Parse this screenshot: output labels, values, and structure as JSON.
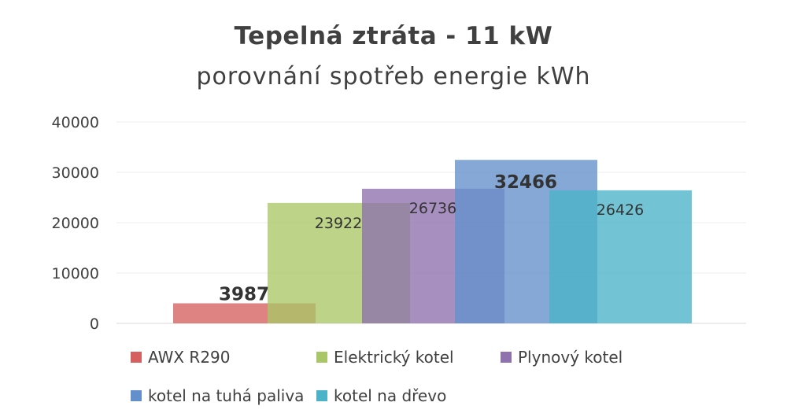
{
  "chart_data": {
    "type": "bar",
    "title": "Tepelná ztráta - 11 kW",
    "subtitle": "porovnání spotřeb energie kWh",
    "categories": [
      "AWX R290",
      "Elektrický kotel",
      "Plynový kotel",
      "kotel na tuhá paliva",
      "kotel na dřevo"
    ],
    "series": [
      {
        "name": "AWX R290",
        "value": 3987,
        "label": "3987",
        "color": "#d65f5f",
        "bold": true
      },
      {
        "name": "Elektrický kotel",
        "value": 23922,
        "label": "23922",
        "color": "#a9c766",
        "bold": false
      },
      {
        "name": "Plynový kotel",
        "value": 26736,
        "label": "26736",
        "color": "#8e71ad",
        "bold": false
      },
      {
        "name": "kotel na tuhá paliva",
        "value": 32466,
        "label": "32466",
        "color": "#6390cc",
        "bold": true
      },
      {
        "name": "kotel na dřevo",
        "value": 26426,
        "label": "26426",
        "color": "#4ab3c8",
        "bold": false
      }
    ],
    "ylim": [
      0,
      40000
    ],
    "yticks": [
      "0",
      "10000",
      "20000",
      "30000",
      "40000"
    ],
    "grid": true,
    "legend_position": "bottom"
  }
}
